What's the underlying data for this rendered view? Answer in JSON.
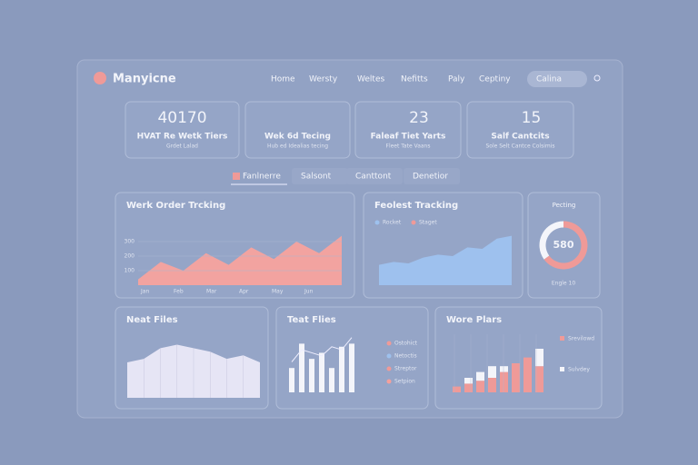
{
  "header": {
    "brand": "Manyicne",
    "nav": [
      "Home",
      "Wersty",
      "Weltes",
      "Nefitts",
      "Paly",
      "Ceptiny"
    ],
    "search": "Calina"
  },
  "stats": [
    {
      "value": "40170",
      "label": "HVAT Re Wetk Tiers",
      "sub": "Grdet Lalad"
    },
    {
      "label": "Wek 6d Tecing",
      "sub": "Hub ed Idealias tecing"
    },
    {
      "value": "23",
      "label": "Faleaf Tiet Yarts",
      "sub": "Fleet Tate Vaans"
    },
    {
      "value": "15",
      "label": "Salf Cantcits",
      "sub": "Sole Selt Cantce Colsimis"
    }
  ],
  "tabs": [
    "Fanlnerre",
    "Salsont",
    "Canttont",
    "Denetior"
  ],
  "work": {
    "title": "Werk Order Trcking",
    "ylim": [
      0,
      400
    ],
    "yticks": [
      100,
      200,
      300
    ],
    "xlabels": [
      "Jan",
      "Feb",
      "Mar",
      "Apr",
      "May",
      "Jun"
    ],
    "values": [
      40,
      160,
      100,
      220,
      140,
      260,
      180,
      300,
      220,
      340
    ]
  },
  "fleet": {
    "title": "Feolest Tracking",
    "legend": [
      "Rocket",
      "Staget"
    ],
    "ylim": [
      0,
      400
    ],
    "values": [
      140,
      160,
      150,
      190,
      210,
      200,
      260,
      250,
      320,
      340
    ]
  },
  "donut": {
    "title": "Pecting",
    "center": "580",
    "footer": "Engle 10",
    "values": [
      65,
      35
    ]
  },
  "files": {
    "title": "Neat Files",
    "ylim": [
      0,
      100
    ],
    "values": [
      50,
      55,
      70,
      75,
      70,
      65,
      55,
      60,
      50
    ]
  },
  "flies": {
    "title": "Teat Flies",
    "ylim": [
      0,
      100
    ],
    "values": [
      40,
      80,
      55,
      65,
      40,
      75,
      80
    ],
    "trend": [
      50,
      70,
      65,
      60,
      75,
      70,
      90
    ],
    "legend": [
      "Ostohict",
      "Netoctis",
      "Streptor",
      "Setpion"
    ]
  },
  "plans": {
    "title": "Wore Plars",
    "ylim": [
      0,
      100
    ],
    "series": [
      {
        "name": "Srevilowd",
        "color": "#ef9a98",
        "values": [
          10,
          15,
          20,
          25,
          35,
          50,
          60,
          45
        ]
      },
      {
        "name": "Sulvdey",
        "color": "#f4f5fa",
        "values": [
          0,
          10,
          15,
          20,
          10,
          0,
          0,
          30
        ]
      }
    ]
  }
}
